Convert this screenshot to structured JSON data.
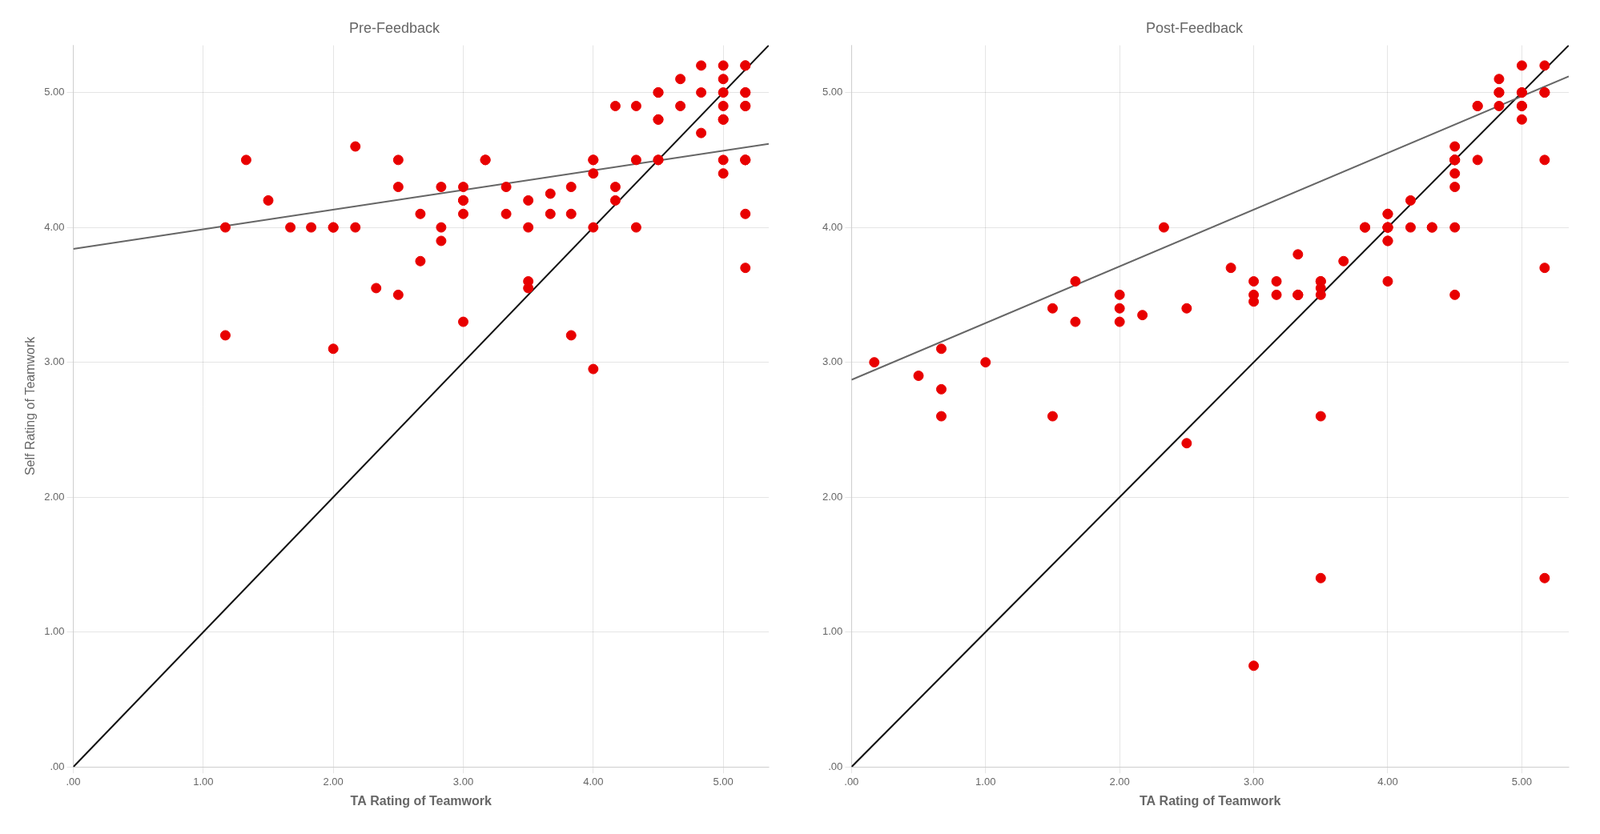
{
  "chart_data": [
    {
      "type": "scatter",
      "title": "Pre-Feedback",
      "xlabel": "TA Rating of Teamwork",
      "ylabel": "Self Rating of Teamwork",
      "xlim": [
        0.0,
        5.35
      ],
      "ylim": [
        0.0,
        5.35
      ],
      "xticks": [
        {
          "value": 0.0,
          "label": ".00"
        },
        {
          "value": 1.0,
          "label": "1.00"
        },
        {
          "value": 2.0,
          "label": "2.00"
        },
        {
          "value": 3.0,
          "label": "3.00"
        },
        {
          "value": 4.0,
          "label": "4.00"
        },
        {
          "value": 5.0,
          "label": "5.00"
        }
      ],
      "yticks": [
        {
          "value": 0.0,
          "label": ".00"
        },
        {
          "value": 1.0,
          "label": "1.00"
        },
        {
          "value": 2.0,
          "label": "2.00"
        },
        {
          "value": 3.0,
          "label": "3.00"
        },
        {
          "value": 4.0,
          "label": "4.00"
        },
        {
          "value": 5.0,
          "label": "5.00"
        }
      ],
      "grid": true,
      "series": [
        {
          "type": "line",
          "line_style": "solid",
          "color": "#111111",
          "x": [
            0,
            5.35
          ],
          "values": [
            0,
            5.35
          ]
        },
        {
          "type": "line",
          "line_style": "solid",
          "color": "#666666",
          "x": [
            0.0,
            5.35
          ],
          "values": [
            3.84,
            4.62
          ]
        },
        {
          "type": "scatter",
          "marker": "circle",
          "color": "#e80000",
          "x": [
            1.17,
            1.17,
            1.33,
            1.5,
            1.67,
            1.83,
            2.0,
            2.0,
            2.0,
            2.17,
            2.17,
            2.33,
            2.5,
            2.5,
            2.5,
            2.67,
            2.67,
            2.83,
            2.83,
            2.83,
            3.0,
            3.0,
            3.0,
            3.0,
            3.0,
            3.17,
            3.17,
            3.33,
            3.33,
            3.5,
            3.5,
            3.5,
            3.5,
            3.67,
            3.67,
            3.83,
            3.83,
            3.83,
            4.0,
            4.0,
            4.0,
            4.0,
            4.0,
            4.17,
            4.17,
            4.17,
            4.33,
            4.33,
            4.33,
            4.5,
            4.5,
            4.5,
            4.5,
            4.5,
            4.5,
            4.67,
            4.67,
            4.83,
            4.83,
            4.83,
            5.0,
            5.0,
            5.0,
            5.0,
            5.0,
            5.0,
            5.0,
            5.0,
            5.17,
            5.17,
            5.17,
            5.17,
            5.17,
            5.17,
            5.17,
            5.17,
            5.17,
            5.17,
            5.17
          ],
          "values": [
            4.0,
            3.2,
            4.5,
            4.2,
            4.0,
            4.0,
            4.0,
            3.1,
            4.0,
            4.0,
            4.6,
            3.55,
            4.3,
            4.5,
            3.5,
            3.75,
            4.1,
            4.0,
            4.3,
            3.9,
            4.2,
            4.3,
            4.1,
            3.3,
            4.2,
            4.5,
            4.5,
            4.1,
            4.3,
            3.55,
            3.6,
            4.0,
            4.2,
            4.1,
            4.25,
            4.1,
            3.2,
            4.3,
            2.95,
            4.5,
            4.0,
            4.5,
            4.4,
            4.9,
            4.2,
            4.3,
            4.5,
            4.0,
            4.9,
            4.5,
            4.8,
            5.0,
            4.8,
            4.5,
            5.0,
            4.9,
            5.1,
            4.7,
            5.0,
            5.2,
            4.9,
            4.4,
            5.1,
            4.8,
            5.0,
            5.2,
            4.5,
            4.8,
            4.9,
            4.5,
            5.0,
            5.0,
            5.2,
            4.1,
            4.5,
            5.2,
            4.9,
            3.7,
            4.5
          ]
        }
      ]
    },
    {
      "type": "scatter",
      "title": "Post-Feedback",
      "xlabel": "TA Rating of Teamwork",
      "xlim": [
        0.0,
        5.35
      ],
      "ylim": [
        0.0,
        5.35
      ],
      "xticks": [
        {
          "value": 0.0,
          "label": ".00"
        },
        {
          "value": 1.0,
          "label": "1.00"
        },
        {
          "value": 2.0,
          "label": "2.00"
        },
        {
          "value": 3.0,
          "label": "3.00"
        },
        {
          "value": 4.0,
          "label": "4.00"
        },
        {
          "value": 5.0,
          "label": "5.00"
        }
      ],
      "yticks": [
        {
          "value": 0.0,
          "label": ".00"
        },
        {
          "value": 1.0,
          "label": "1.00"
        },
        {
          "value": 2.0,
          "label": "2.00"
        },
        {
          "value": 3.0,
          "label": "3.00"
        },
        {
          "value": 4.0,
          "label": "4.00"
        },
        {
          "value": 5.0,
          "label": "5.00"
        }
      ],
      "grid": true,
      "series": [
        {
          "type": "line",
          "line_style": "solid",
          "color": "#111111",
          "x": [
            0,
            5.35
          ],
          "values": [
            0,
            5.35
          ]
        },
        {
          "type": "line",
          "line_style": "solid",
          "color": "#666666",
          "x": [
            0.0,
            5.35
          ],
          "values": [
            2.87,
            5.12
          ]
        },
        {
          "type": "scatter",
          "marker": "circle",
          "color": "#e80000",
          "x": [
            0.17,
            0.5,
            0.67,
            0.67,
            0.67,
            1.0,
            1.5,
            1.5,
            1.67,
            1.67,
            2.0,
            2.0,
            2.0,
            2.17,
            2.33,
            2.5,
            2.5,
            2.83,
            3.0,
            3.0,
            3.0,
            3.17,
            3.17,
            3.33,
            3.33,
            3.33,
            3.33,
            3.5,
            3.5,
            3.5,
            3.5,
            3.5,
            3.67,
            3.83,
            3.83,
            4.0,
            4.0,
            4.0,
            4.0,
            4.0,
            4.0,
            4.0,
            4.0,
            4.0,
            4.17,
            4.17,
            4.33,
            4.33,
            4.5,
            4.5,
            4.5,
            4.5,
            4.5,
            4.5,
            4.5,
            4.5,
            4.5,
            4.67,
            4.67,
            4.67,
            4.83,
            4.83,
            4.83,
            4.83,
            5.0,
            5.0,
            5.0,
            5.0,
            5.0,
            5.0,
            5.17,
            5.17,
            5.17,
            5.17,
            5.17,
            5.17
          ],
          "values": [
            3.0,
            2.9,
            3.1,
            2.8,
            2.6,
            3.0,
            2.6,
            3.4,
            3.6,
            3.3,
            3.3,
            3.5,
            3.4,
            3.35,
            4.0,
            3.4,
            2.4,
            3.7,
            3.6,
            3.5,
            3.45,
            3.5,
            3.6,
            3.8,
            3.5,
            3.5,
            3.5,
            3.6,
            3.5,
            3.6,
            3.55,
            2.6,
            3.75,
            4.0,
            4.0,
            4.0,
            3.9,
            4.0,
            4.1,
            4.0,
            3.9,
            4.1,
            3.6,
            4.0,
            4.2,
            4.0,
            4.0,
            4.0,
            4.5,
            4.3,
            4.5,
            4.5,
            4.6,
            4.5,
            4.4,
            4.0,
            3.5,
            4.9,
            4.9,
            4.5,
            5.1,
            5.0,
            4.9,
            5.0,
            4.8,
            4.9,
            5.0,
            5.0,
            5.2,
            4.9,
            5.0,
            4.5,
            5.2,
            5.0,
            3.7,
            1.4
          ]
        },
        {
          "type": "scatter",
          "marker": "circle",
          "color": "#e80000",
          "x": [
            3.0,
            3.5
          ],
          "values": [
            0.75,
            1.4
          ]
        }
      ]
    }
  ]
}
